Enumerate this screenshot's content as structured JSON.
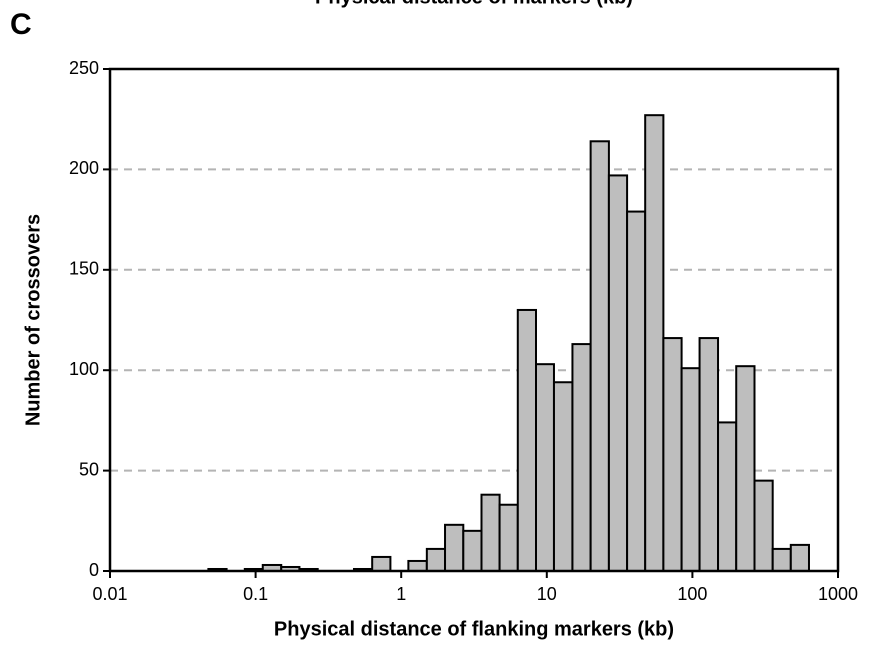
{
  "chart_data": {
    "type": "histogram",
    "title": "Physical distance of markers (kb)",
    "panel_label": "C",
    "xlabel": "Physical distance of flanking markers (kb)",
    "ylabel": "Number of crossovers",
    "xscale": "log",
    "grid": true,
    "color": "#bebebe",
    "xlim": [
      0.01,
      1000
    ],
    "xticks": [
      0.01,
      0.1,
      1,
      10,
      100,
      1000
    ],
    "ylim": [
      0,
      250
    ],
    "yticks": [
      0,
      50,
      100,
      150,
      200,
      250
    ],
    "bins": [
      0.0112,
      0.015,
      0.02,
      0.0267,
      0.0356,
      0.0474,
      0.0632,
      0.0843,
      0.112,
      0.15,
      0.2,
      0.267,
      0.356,
      0.474,
      0.632,
      0.843,
      1.12,
      1.5,
      2,
      2.67,
      3.56,
      4.74,
      6.32,
      8.43,
      11.2,
      15,
      20,
      26.7,
      35.6,
      47.4,
      63.2,
      84.3,
      112,
      150,
      200,
      267,
      356,
      474,
      632
    ],
    "values": [
      0,
      0,
      0,
      0,
      0,
      1,
      0,
      1,
      3,
      2,
      1,
      0,
      0,
      1,
      7,
      0,
      5,
      11,
      23,
      20,
      38,
      33,
      130,
      103,
      94,
      113,
      214,
      197,
      179,
      227,
      116,
      101,
      116,
      74,
      102,
      45,
      11,
      13
    ]
  }
}
